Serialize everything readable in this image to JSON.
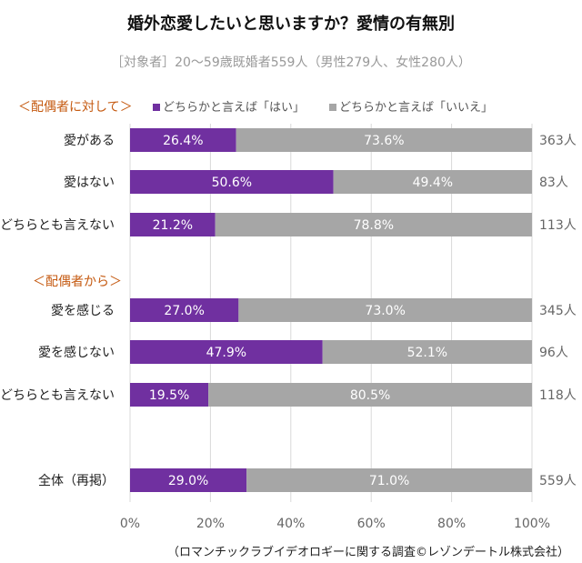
{
  "chart_data": {
    "type": "bar",
    "stacked": true,
    "orientation": "horizontal",
    "title": "婚外恋愛したいと思いますか？愛情の有無別",
    "subtitle": "［対象者］20～59歳既婚者559人（男性279人、女性280人）",
    "source": "（ロマンチックラブイデオロギーに関する調査©レゾンデートル株式会社）",
    "sections": [
      {
        "label": "＜配偶者に対して＞",
        "rows": [
          0,
          1,
          2
        ]
      },
      {
        "label": "＜配偶者から＞",
        "rows": [
          3,
          4,
          5
        ]
      }
    ],
    "categories": [
      "愛がある",
      "愛はない",
      "どちらとも言えない",
      "愛を感じる",
      "愛を感じない",
      "どちらとも言えない",
      "全体（再掲）"
    ],
    "counts": [
      "363人",
      "83人",
      "113人",
      "345人",
      "96人",
      "118人",
      "559人"
    ],
    "series": [
      {
        "name": "どちらかと言えば「はい」",
        "color": "#7030a0",
        "values": [
          26.4,
          50.6,
          21.2,
          27.0,
          47.9,
          19.5,
          29.0
        ],
        "labels": [
          "26.4%",
          "50.6%",
          "21.2%",
          "27.0%",
          "47.9%",
          "19.5%",
          "29.0%"
        ]
      },
      {
        "name": "どちらかと言えば「いいえ」",
        "color": "#a6a6a6",
        "values": [
          73.6,
          49.4,
          78.8,
          73.0,
          52.1,
          80.5,
          71.0
        ],
        "labels": [
          "73.6%",
          "49.4%",
          "78.8%",
          "73.0%",
          "52.1%",
          "80.5%",
          "71.0%"
        ]
      }
    ],
    "xlim": [
      0,
      100
    ],
    "xticks": [
      "0%",
      "20%",
      "40%",
      "60%",
      "80%",
      "100%"
    ],
    "grid": true,
    "legend_placement": "top",
    "section_color": "#c55a11"
  }
}
